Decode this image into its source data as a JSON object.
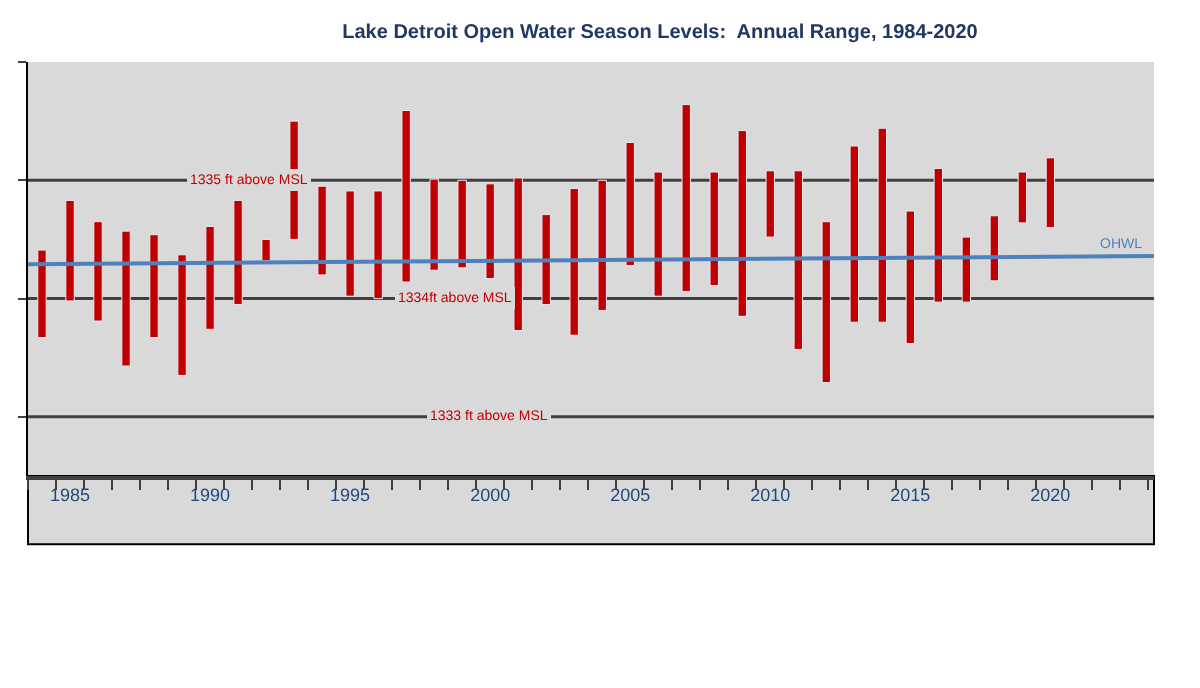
{
  "chart_data": {
    "type": "bar",
    "title": "Lake Detroit Open Water Season Levels:  Annual Range, 1984-2020",
    "x": [
      1984,
      1985,
      1986,
      1987,
      1988,
      1989,
      1990,
      1991,
      1992,
      1993,
      1994,
      1995,
      1996,
      1997,
      1998,
      1999,
      2000,
      2001,
      2002,
      2003,
      2004,
      2005,
      2006,
      2007,
      2008,
      2009,
      2010,
      2011,
      2012,
      2013,
      2014,
      2015,
      2016,
      2017,
      2018,
      2019,
      2020
    ],
    "series": [
      {
        "color": "#c00000",
        "base": [
          1333.67,
          1333.98,
          1333.81,
          1333.43,
          1333.67,
          1333.35,
          1333.74,
          1333.95,
          1334.32,
          1334.5,
          1334.2,
          1334.02,
          1334.0,
          1334.14,
          1334.24,
          1334.26,
          1334.17,
          1333.73,
          1333.95,
          1333.69,
          1333.9,
          1334.28,
          1334.02,
          1334.06,
          1334.11,
          1333.85,
          1334.52,
          1333.57,
          1333.29,
          1333.8,
          1333.8,
          1333.62,
          1333.97,
          1333.97,
          1334.15,
          1334.64,
          1334.6
        ],
        "values": [
          0.74,
          0.85,
          0.84,
          1.14,
          0.87,
          1.02,
          0.87,
          0.88,
          0.18,
          1.0,
          0.75,
          0.89,
          0.91,
          1.45,
          0.77,
          0.74,
          0.8,
          1.29,
          0.76,
          1.24,
          1.1,
          1.04,
          1.05,
          1.58,
          0.96,
          1.57,
          0.56,
          1.51,
          1.36,
          1.49,
          1.64,
          1.12,
          1.13,
          0.55,
          0.55,
          0.43,
          0.59
        ]
      },
      {
        "type": "line",
        "name": "OHWL",
        "color": "#4f81bd",
        "x": [
          1983.5,
          2023.7
        ],
        "values": [
          1334.29,
          1334.36
        ],
        "marker": "none",
        "line_style": "solid"
      }
    ],
    "xlim": [
      1983.5,
      2023.7
    ],
    "xticks": [
      {
        "value": 1983.5,
        "label": null
      },
      {
        "value": 1984.5,
        "label": null
      },
      {
        "value": 1985,
        "label": "1985"
      },
      {
        "value": 1985.5,
        "label": null
      },
      {
        "value": 1986.5,
        "label": null
      },
      {
        "value": 1987.5,
        "label": null
      },
      {
        "value": 1988.5,
        "label": null
      },
      {
        "value": 1989.5,
        "label": null
      },
      {
        "value": 1990,
        "label": "1990"
      },
      {
        "value": 1990.5,
        "label": null
      },
      {
        "value": 1991.5,
        "label": null
      },
      {
        "value": 1992.5,
        "label": null
      },
      {
        "value": 1993.5,
        "label": null
      },
      {
        "value": 1994.5,
        "label": null
      },
      {
        "value": 1995,
        "label": "1995"
      },
      {
        "value": 1995.5,
        "label": null
      },
      {
        "value": 1996.5,
        "label": null
      },
      {
        "value": 1997.5,
        "label": null
      },
      {
        "value": 1998.5,
        "label": null
      },
      {
        "value": 1999.5,
        "label": null
      },
      {
        "value": 2000,
        "label": "2000"
      },
      {
        "value": 2000.5,
        "label": null
      },
      {
        "value": 2001.5,
        "label": null
      },
      {
        "value": 2002.5,
        "label": null
      },
      {
        "value": 2003.5,
        "label": null
      },
      {
        "value": 2004.5,
        "label": null
      },
      {
        "value": 2005,
        "label": "2005"
      },
      {
        "value": 2005.5,
        "label": null
      },
      {
        "value": 2006.5,
        "label": null
      },
      {
        "value": 2007.5,
        "label": null
      },
      {
        "value": 2008.5,
        "label": null
      },
      {
        "value": 2009.5,
        "label": null
      },
      {
        "value": 2010,
        "label": "2010"
      },
      {
        "value": 2010.5,
        "label": null
      },
      {
        "value": 2011.5,
        "label": null
      },
      {
        "value": 2012.5,
        "label": null
      },
      {
        "value": 2013.5,
        "label": null
      },
      {
        "value": 2014.5,
        "label": null
      },
      {
        "value": 2015,
        "label": "2015"
      },
      {
        "value": 2015.5,
        "label": null
      },
      {
        "value": 2016.5,
        "label": null
      },
      {
        "value": 2017.5,
        "label": null
      },
      {
        "value": 2018.5,
        "label": null
      },
      {
        "value": 2019.5,
        "label": null
      },
      {
        "value": 2020,
        "label": "2020"
      },
      {
        "value": 2020.5,
        "label": null
      },
      {
        "value": 2021.5,
        "label": null
      },
      {
        "value": 2022.5,
        "label": null
      },
      {
        "value": 2023.5,
        "label": null
      }
    ],
    "ylim": [
      1332.5,
      1336
    ],
    "yticks": [
      {
        "value": 1333,
        "label": null
      },
      {
        "value": 1334,
        "label": null
      },
      {
        "value": 1335,
        "label": null
      },
      {
        "value": 1336,
        "label": null
      }
    ],
    "tick_labels": "x",
    "grid": false,
    "legend": false,
    "ref_lines": [
      {
        "axis": "y",
        "value": 1335,
        "label": "1335 ft above MSL",
        "color": "#404040"
      },
      {
        "axis": "y",
        "value": 1334,
        "label": "1334ft above MSL",
        "color": "#404040"
      },
      {
        "axis": "y",
        "value": 1333,
        "label": "1333 ft above MSL",
        "color": "#404040"
      }
    ]
  }
}
